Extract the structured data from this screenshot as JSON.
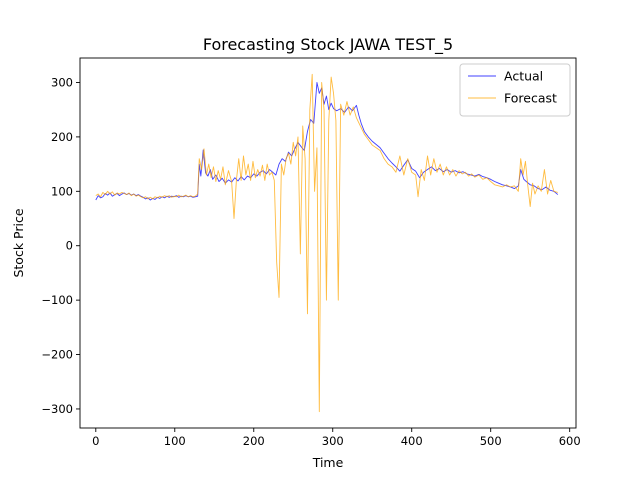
{
  "chart_data": {
    "type": "line",
    "title": "Forecasting Stock JAWA TEST_5",
    "xlabel": "Time",
    "ylabel": "Stock Price",
    "xlim": [
      -20,
      608
    ],
    "ylim": [
      -335,
      345
    ],
    "xticks": [
      0,
      100,
      200,
      300,
      400,
      500,
      600
    ],
    "yticks": [
      -300,
      -200,
      -100,
      0,
      100,
      200,
      300
    ],
    "grid": false,
    "legend_position": "top-right",
    "series": [
      {
        "name": "Actual",
        "color": "#0000ff",
        "points": [
          [
            0,
            84
          ],
          [
            3,
            92
          ],
          [
            6,
            88
          ],
          [
            9,
            90
          ],
          [
            12,
            96
          ],
          [
            15,
            93
          ],
          [
            18,
            97
          ],
          [
            21,
            91
          ],
          [
            24,
            94
          ],
          [
            27,
            96
          ],
          [
            30,
            92
          ],
          [
            33,
            95
          ],
          [
            36,
            97
          ],
          [
            39,
            94
          ],
          [
            42,
            96
          ],
          [
            45,
            93
          ],
          [
            48,
            95
          ],
          [
            51,
            92
          ],
          [
            54,
            94
          ],
          [
            57,
            91
          ],
          [
            60,
            89
          ],
          [
            63,
            86
          ],
          [
            66,
            88
          ],
          [
            69,
            84
          ],
          [
            72,
            87
          ],
          [
            75,
            85
          ],
          [
            78,
            89
          ],
          [
            81,
            87
          ],
          [
            84,
            90
          ],
          [
            87,
            88
          ],
          [
            90,
            91
          ],
          [
            93,
            89
          ],
          [
            96,
            91
          ],
          [
            99,
            90
          ],
          [
            102,
            92
          ],
          [
            105,
            89
          ],
          [
            108,
            91
          ],
          [
            111,
            90
          ],
          [
            114,
            92
          ],
          [
            117,
            90
          ],
          [
            120,
            91
          ],
          [
            123,
            89
          ],
          [
            126,
            90
          ],
          [
            129,
            91
          ],
          [
            131,
            150
          ],
          [
            133,
            128
          ],
          [
            136,
            176
          ],
          [
            139,
            134
          ],
          [
            142,
            128
          ],
          [
            145,
            140
          ],
          [
            148,
            122
          ],
          [
            152,
            130
          ],
          [
            156,
            118
          ],
          [
            160,
            124
          ],
          [
            164,
            115
          ],
          [
            168,
            121
          ],
          [
            172,
            117
          ],
          [
            176,
            125
          ],
          [
            180,
            119
          ],
          [
            184,
            127
          ],
          [
            188,
            121
          ],
          [
            192,
            128
          ],
          [
            196,
            125
          ],
          [
            200,
            132
          ],
          [
            204,
            128
          ],
          [
            208,
            135
          ],
          [
            212,
            138
          ],
          [
            216,
            132
          ],
          [
            220,
            140
          ],
          [
            224,
            135
          ],
          [
            228,
            130
          ],
          [
            232,
            150
          ],
          [
            236,
            160
          ],
          [
            240,
            155
          ],
          [
            244,
            172
          ],
          [
            248,
            165
          ],
          [
            252,
            178
          ],
          [
            256,
            190
          ],
          [
            260,
            182
          ],
          [
            264,
            175
          ],
          [
            268,
            210
          ],
          [
            272,
            232
          ],
          [
            276,
            225
          ],
          [
            280,
            300
          ],
          [
            283,
            280
          ],
          [
            286,
            290
          ],
          [
            289,
            260
          ],
          [
            292,
            275
          ],
          [
            295,
            250
          ],
          [
            298,
            262
          ],
          [
            301,
            252
          ],
          [
            305,
            248
          ],
          [
            310,
            252
          ],
          [
            315,
            245
          ],
          [
            320,
            255
          ],
          [
            325,
            248
          ],
          [
            330,
            258
          ],
          [
            333,
            240
          ],
          [
            336,
            225
          ],
          [
            340,
            210
          ],
          [
            345,
            200
          ],
          [
            350,
            192
          ],
          [
            355,
            186
          ],
          [
            360,
            180
          ],
          [
            365,
            170
          ],
          [
            370,
            160
          ],
          [
            375,
            152
          ],
          [
            380,
            145
          ],
          [
            385,
            137
          ],
          [
            390,
            148
          ],
          [
            395,
            158
          ],
          [
            400,
            142
          ],
          [
            405,
            137
          ],
          [
            410,
            125
          ],
          [
            415,
            135
          ],
          [
            420,
            140
          ],
          [
            425,
            145
          ],
          [
            430,
            138
          ],
          [
            435,
            142
          ],
          [
            440,
            136
          ],
          [
            445,
            140
          ],
          [
            450,
            135
          ],
          [
            455,
            138
          ],
          [
            460,
            134
          ],
          [
            465,
            136
          ],
          [
            470,
            132
          ],
          [
            475,
            130
          ],
          [
            480,
            128
          ],
          [
            485,
            131
          ],
          [
            490,
            127
          ],
          [
            495,
            125
          ],
          [
            500,
            122
          ],
          [
            505,
            118
          ],
          [
            510,
            115
          ],
          [
            515,
            112
          ],
          [
            520,
            110
          ],
          [
            525,
            108
          ],
          [
            530,
            105
          ],
          [
            535,
            110
          ],
          [
            538,
            140
          ],
          [
            542,
            122
          ],
          [
            545,
            118
          ],
          [
            550,
            112
          ],
          [
            555,
            110
          ],
          [
            560,
            105
          ],
          [
            565,
            103
          ],
          [
            570,
            108
          ],
          [
            575,
            102
          ],
          [
            580,
            100
          ],
          [
            585,
            94
          ]
        ]
      },
      {
        "name": "Forecast",
        "color": "#ffa500",
        "points": [
          [
            0,
            92
          ],
          [
            3,
            95
          ],
          [
            6,
            90
          ],
          [
            9,
            98
          ],
          [
            12,
            94
          ],
          [
            15,
            100
          ],
          [
            18,
            95
          ],
          [
            21,
            99
          ],
          [
            24,
            93
          ],
          [
            27,
            97
          ],
          [
            30,
            95
          ],
          [
            33,
            98
          ],
          [
            36,
            96
          ],
          [
            39,
            94
          ],
          [
            42,
            97
          ],
          [
            45,
            92
          ],
          [
            48,
            95
          ],
          [
            51,
            91
          ],
          [
            54,
            93
          ],
          [
            57,
            90
          ],
          [
            60,
            88
          ],
          [
            63,
            90
          ],
          [
            66,
            86
          ],
          [
            69,
            89
          ],
          [
            72,
            86
          ],
          [
            75,
            90
          ],
          [
            78,
            88
          ],
          [
            81,
            91
          ],
          [
            84,
            89
          ],
          [
            87,
            92
          ],
          [
            90,
            90
          ],
          [
            93,
            92
          ],
          [
            96,
            89
          ],
          [
            99,
            91
          ],
          [
            102,
            90
          ],
          [
            105,
            93
          ],
          [
            108,
            90
          ],
          [
            111,
            91
          ],
          [
            114,
            93
          ],
          [
            117,
            90
          ],
          [
            120,
            92
          ],
          [
            123,
            90
          ],
          [
            126,
            91
          ],
          [
            129,
            95
          ],
          [
            131,
            160
          ],
          [
            134,
            140
          ],
          [
            137,
            178
          ],
          [
            140,
            130
          ],
          [
            143,
            150
          ],
          [
            146,
            125
          ],
          [
            149,
            145
          ],
          [
            152,
            118
          ],
          [
            155,
            138
          ],
          [
            158,
            122
          ],
          [
            161,
            145
          ],
          [
            164,
            112
          ],
          [
            168,
            138
          ],
          [
            172,
            118
          ],
          [
            175,
            50
          ],
          [
            178,
            120
          ],
          [
            181,
            160
          ],
          [
            184,
            120
          ],
          [
            187,
            165
          ],
          [
            190,
            130
          ],
          [
            193,
            150
          ],
          [
            196,
            120
          ],
          [
            199,
            155
          ],
          [
            202,
            125
          ],
          [
            205,
            140
          ],
          [
            208,
            128
          ],
          [
            211,
            148
          ],
          [
            214,
            120
          ],
          [
            217,
            150
          ],
          [
            220,
            130
          ],
          [
            223,
            135
          ],
          [
            226,
            120
          ],
          [
            229,
            -30
          ],
          [
            232,
            -95
          ],
          [
            235,
            150
          ],
          [
            238,
            130
          ],
          [
            241,
            160
          ],
          [
            244,
            170
          ],
          [
            247,
            150
          ],
          [
            250,
            190
          ],
          [
            253,
            165
          ],
          [
            256,
            200
          ],
          [
            259,
            -15
          ],
          [
            262,
            220
          ],
          [
            265,
            160
          ],
          [
            268,
            -125
          ],
          [
            271,
            250
          ],
          [
            274,
            315
          ],
          [
            277,
            100
          ],
          [
            280,
            180
          ],
          [
            283,
            -305
          ],
          [
            286,
            300
          ],
          [
            289,
            250
          ],
          [
            292,
            -100
          ],
          [
            295,
            230
          ],
          [
            298,
            310
          ],
          [
            301,
            280
          ],
          [
            304,
            230
          ],
          [
            307,
            -100
          ],
          [
            310,
            260
          ],
          [
            314,
            240
          ],
          [
            318,
            265
          ],
          [
            322,
            240
          ],
          [
            326,
            255
          ],
          [
            330,
            235
          ],
          [
            335,
            220
          ],
          [
            340,
            205
          ],
          [
            345,
            195
          ],
          [
            350,
            185
          ],
          [
            355,
            180
          ],
          [
            360,
            175
          ],
          [
            365,
            160
          ],
          [
            370,
            150
          ],
          [
            375,
            145
          ],
          [
            380,
            135
          ],
          [
            385,
            165
          ],
          [
            390,
            130
          ],
          [
            395,
            160
          ],
          [
            400,
            135
          ],
          [
            405,
            130
          ],
          [
            408,
            90
          ],
          [
            412,
            140
          ],
          [
            416,
            120
          ],
          [
            420,
            165
          ],
          [
            424,
            130
          ],
          [
            428,
            160
          ],
          [
            432,
            135
          ],
          [
            436,
            150
          ],
          [
            440,
            130
          ],
          [
            444,
            145
          ],
          [
            448,
            130
          ],
          [
            452,
            140
          ],
          [
            456,
            128
          ],
          [
            460,
            138
          ],
          [
            464,
            132
          ],
          [
            468,
            135
          ],
          [
            472,
            128
          ],
          [
            476,
            132
          ],
          [
            480,
            126
          ],
          [
            485,
            130
          ],
          [
            490,
            122
          ],
          [
            495,
            125
          ],
          [
            500,
            118
          ],
          [
            505,
            112
          ],
          [
            510,
            110
          ],
          [
            515,
            108
          ],
          [
            520,
            112
          ],
          [
            525,
            108
          ],
          [
            530,
            110
          ],
          [
            535,
            100
          ],
          [
            538,
            160
          ],
          [
            541,
            130
          ],
          [
            544,
            155
          ],
          [
            547,
            110
          ],
          [
            550,
            72
          ],
          [
            553,
            115
          ],
          [
            556,
            95
          ],
          [
            560,
            110
          ],
          [
            564,
            100
          ],
          [
            568,
            140
          ],
          [
            572,
            95
          ],
          [
            576,
            120
          ],
          [
            580,
            100
          ],
          [
            585,
            98
          ]
        ]
      }
    ]
  }
}
